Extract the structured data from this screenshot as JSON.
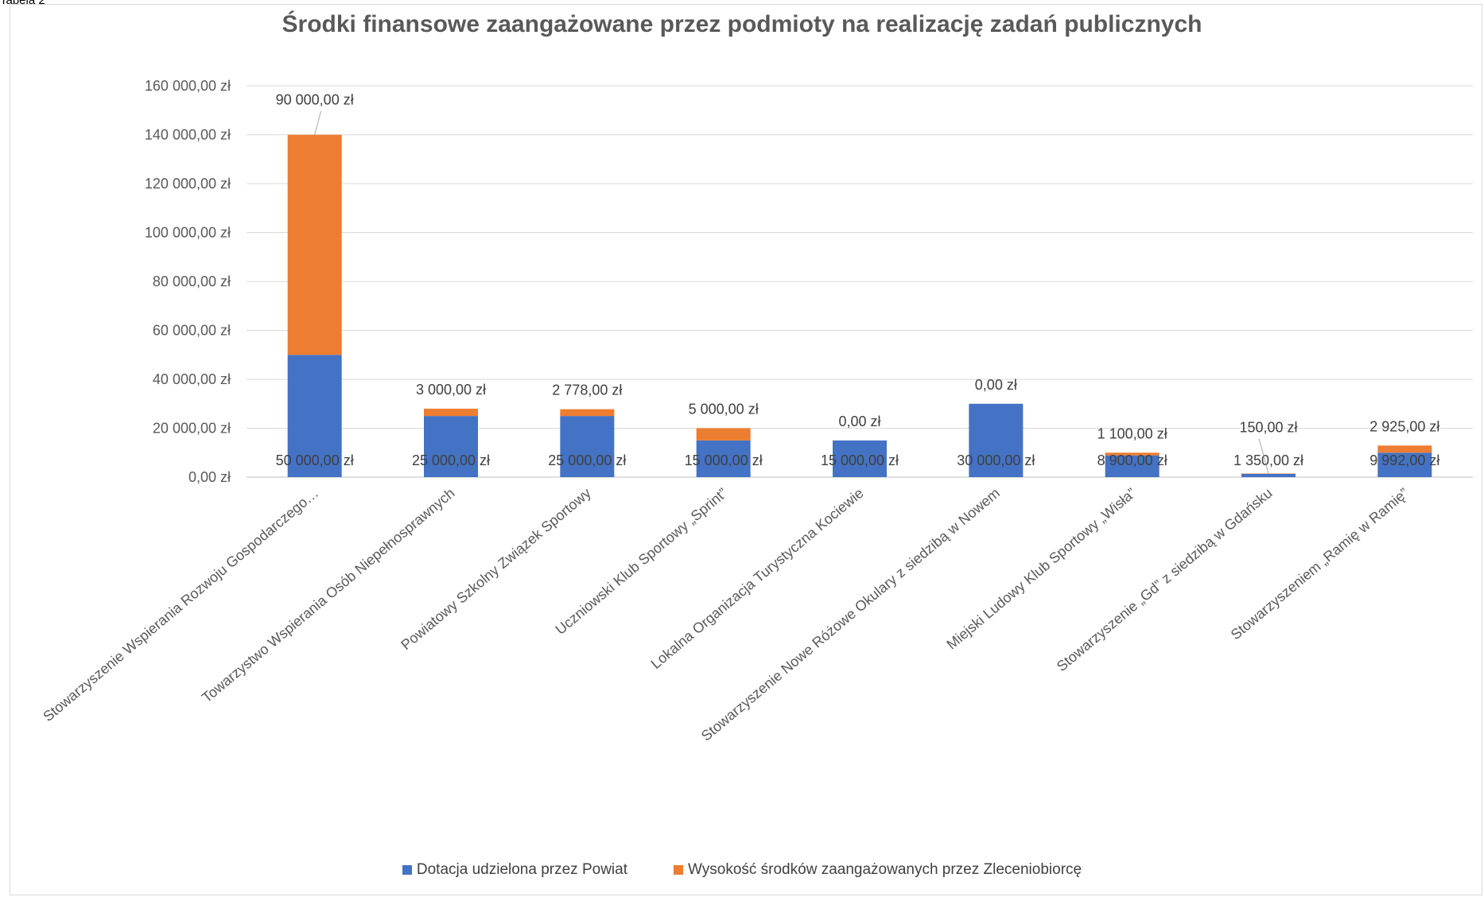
{
  "caption": "Tabela 2",
  "chart_data": {
    "type": "bar",
    "stacked": true,
    "title": "Środki finansowe zaangażowane przez podmioty na realizację zadań publicznych",
    "xlabel": "",
    "ylabel": "",
    "ylim": [
      0,
      160000
    ],
    "y_ticks": [
      0,
      20000,
      40000,
      60000,
      80000,
      100000,
      120000,
      140000,
      160000
    ],
    "y_tick_labels": [
      "0,00 zł",
      "20 000,00 zł",
      "40 000,00 zł",
      "60 000,00 zł",
      "80 000,00 zł",
      "100 000,00 zł",
      "120 000,00 zł",
      "140 000,00 zł",
      "160 000,00 zł"
    ],
    "grid": true,
    "legend_position": "bottom",
    "categories": [
      "Stowarzyszenie Wspierania Rozwoju Gospodarczego…",
      "Towarzystwo Wspierania Osób Niepełnosprawnych",
      "Powiatowy Szkolny Związek Sportowy",
      "Uczniowski Klub Sportowy „Sprint”",
      "Lokalna Organizacja Turystyczna Kociewie",
      "Stowarzyszenie Nowe Różowe Okulary z siedzibą w Nowem",
      "Miejski  Ludowy Klub Sportowy „Wisła”",
      "Stowarzyszenie  „Gd” z siedzibą w Gdańsku",
      "Stowarzyszeniem „Ramię w Ramię”"
    ],
    "series": [
      {
        "name": "Dotacja udzielona przez Powiat",
        "color": "#4472c4",
        "values": [
          50000,
          25000,
          25000,
          15000,
          15000,
          30000,
          8900,
          1350,
          9992
        ],
        "labels": [
          "50 000,00 zł",
          "25 000,00 zł",
          "25 000,00 zł",
          "15 000,00 zł",
          "15 000,00 zł",
          "30 000,00 zł",
          "8 900,00 zł",
          "1 350,00 zł",
          "9 992,00 zł"
        ]
      },
      {
        "name": "Wysokość środków zaangażowanych przez Zleceniobiorcę",
        "color": "#ed7d31",
        "values": [
          90000,
          3000,
          2778,
          5000,
          0,
          0,
          1100,
          150,
          2925
        ],
        "labels": [
          "90 000,00 zł",
          "3 000,00 zł",
          "2 778,00 zł",
          "5 000,00 zł",
          "0,00 zł",
          "0,00 zł",
          "1 100,00 zł",
          "150,00 zł",
          "2 925,00 zł"
        ]
      }
    ]
  }
}
